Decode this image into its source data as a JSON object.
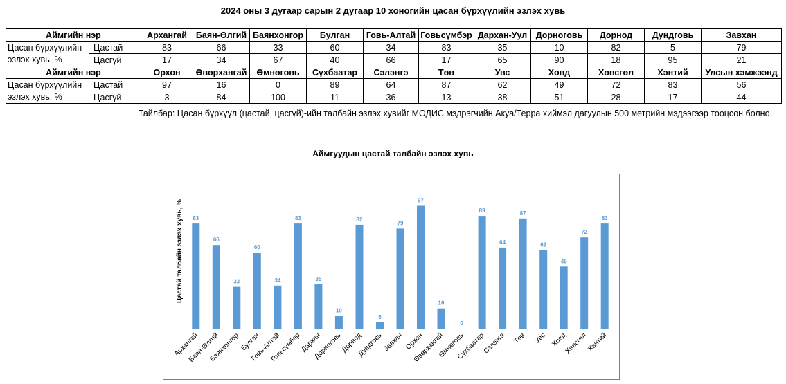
{
  "title": "2024 оны 3 дугаар сарын 2 дугаар 10 хоногийн цасан бүрхүүлийн эзлэх хувь",
  "table": {
    "header_label": "Аймгийн нэр",
    "row_label_line1": "Цасан бүрхүүлийн",
    "row_label_line2": "эзлэх хувь, %",
    "snow_label": "Цастай",
    "nosnow_label": "Цасгүй",
    "part1": {
      "names": [
        "Архангай",
        "Баян-Өлгий",
        "Баянхонгор",
        "Булган",
        "Говь-Алтай",
        "Говьсүмбэр",
        "Дархан-Уул",
        "Дорноговь",
        "Дорнод",
        "Дундговь",
        "Завхан"
      ],
      "snow": [
        "83",
        "66",
        "33",
        "60",
        "34",
        "83",
        "35",
        "10",
        "82",
        "5",
        "79"
      ],
      "nosnow": [
        "17",
        "34",
        "67",
        "40",
        "66",
        "17",
        "65",
        "90",
        "18",
        "95",
        "21"
      ]
    },
    "part2": {
      "names": [
        "Орхон",
        "Өвөрхангай",
        "Өмнөговь",
        "Сүхбаатар",
        "Сэлэнгэ",
        "Төв",
        "Увс",
        "Ховд",
        "Хөвсгөл",
        "Хэнтий",
        "Улсын хэмжээнд"
      ],
      "snow": [
        "97",
        "16",
        "0",
        "89",
        "64",
        "87",
        "62",
        "49",
        "72",
        "83",
        "56"
      ],
      "nosnow": [
        "3",
        "84",
        "100",
        "11",
        "36",
        "13",
        "38",
        "51",
        "28",
        "17",
        "44"
      ]
    }
  },
  "note": "Тайлбар: Цасан бүрхүүл (цастай, цасгүй)-ийн талбайн эзлэх хувийг МОДИС мэдрэгчийн Акуа/Терра хиймэл дагуулын 500 метрийн мэдээгээр тооцсон болно.",
  "chart_data": {
    "type": "bar",
    "title": "Аймгуудын цастай талбайн эзлэх хувь",
    "ylabel": "Цастай талбайн эзлэх хувь, %",
    "xlabel": "",
    "categories": [
      "Архангай",
      "Баян-Өлгий",
      "Баянхонгор",
      "Булган",
      "Говь-Алтай",
      "Говьсүмбэр",
      "Дархан",
      "Дорноговь",
      "Дорнод",
      "Дундговь",
      "Завхан",
      "Орхон",
      "Өвөрхангай",
      "Өмнөговь",
      "Сүхбаатар",
      "Сэлэнгэ",
      "Төв",
      "Увс",
      "Ховд",
      "Хөвсгөл",
      "Хэнтий"
    ],
    "values": [
      83,
      66,
      33,
      60,
      34,
      83,
      35,
      10,
      82,
      5,
      79,
      97,
      16,
      0,
      89,
      64,
      87,
      62,
      49,
      72,
      83
    ],
    "ylim": [
      0,
      100
    ],
    "grid": false,
    "legend": "none",
    "bar_color": "#5B9BD5",
    "label_color": "#5B9BD5"
  }
}
